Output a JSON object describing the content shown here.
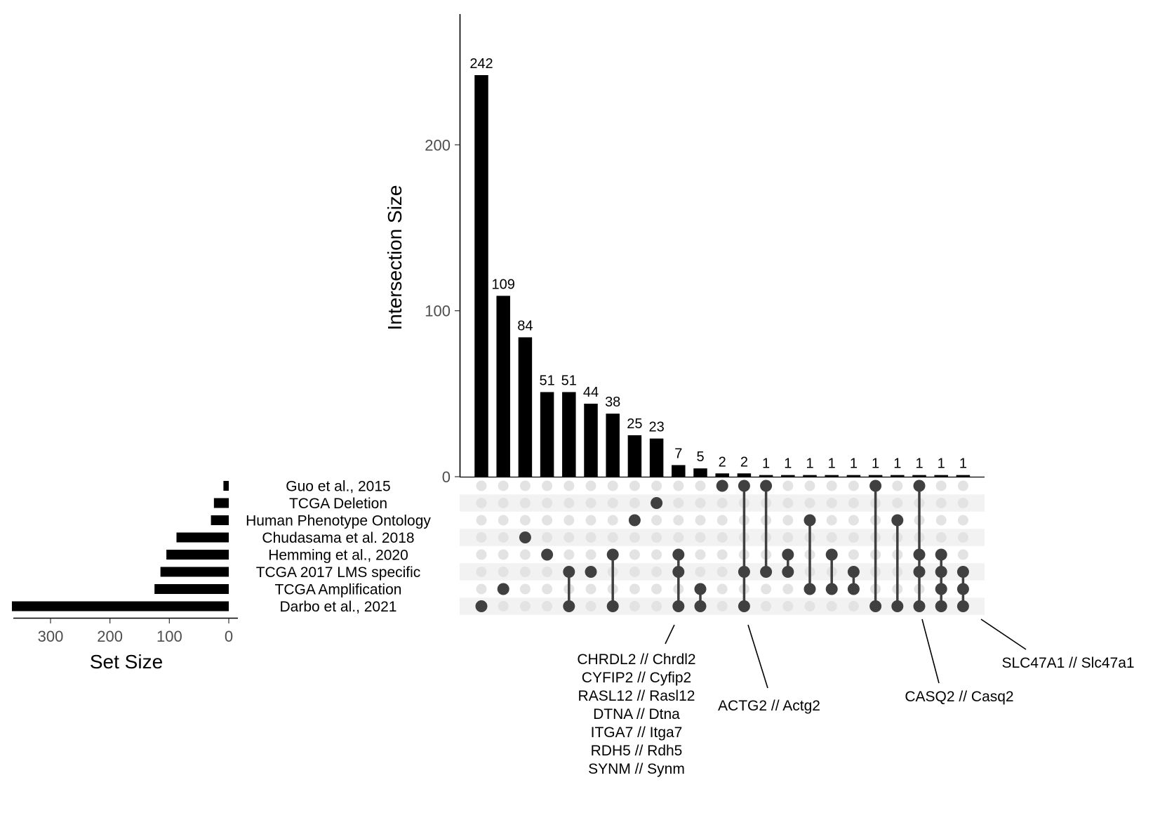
{
  "chart_data": {
    "type": "upset",
    "intersection_axis": {
      "label": "Intersection Size",
      "ylim": [
        0,
        260
      ],
      "ticks": [
        0,
        100,
        200
      ]
    },
    "set_size_axis": {
      "label": "Set Size",
      "xlim": [
        380,
        0
      ],
      "ticks": [
        300,
        200,
        100,
        0
      ]
    },
    "sets": [
      {
        "name": "Guo et al., 2015",
        "size": 9
      },
      {
        "name": "TCGA Deletion",
        "size": 25
      },
      {
        "name": "Human Phenotype Ontology",
        "size": 30
      },
      {
        "name": "Chudasama et al. 2018",
        "size": 88
      },
      {
        "name": "Hemming et al., 2020",
        "size": 105
      },
      {
        "name": "TCGA 2017 LMS specific",
        "size": 115
      },
      {
        "name": "TCGA Amplification",
        "size": 125
      },
      {
        "name": "Darbo et al., 2021",
        "size": 365
      }
    ],
    "intersections": [
      {
        "value": 242,
        "label": "242",
        "members": [
          7
        ]
      },
      {
        "value": 109,
        "label": "109",
        "members": [
          6
        ]
      },
      {
        "value": 84,
        "label": "84",
        "members": [
          3
        ]
      },
      {
        "value": 51,
        "label": "51",
        "members": [
          4
        ]
      },
      {
        "value": 51,
        "label": "51",
        "members": [
          5,
          7
        ]
      },
      {
        "value": 44,
        "label": "44",
        "members": [
          5
        ]
      },
      {
        "value": 38,
        "label": "38",
        "members": [
          4,
          7
        ]
      },
      {
        "value": 25,
        "label": "25",
        "members": [
          2
        ]
      },
      {
        "value": 23,
        "label": "23",
        "members": [
          1
        ]
      },
      {
        "value": 7,
        "label": "7",
        "members": [
          4,
          5,
          7
        ]
      },
      {
        "value": 5,
        "label": "5",
        "members": [
          6,
          7
        ]
      },
      {
        "value": 2,
        "label": "2",
        "members": [
          0
        ]
      },
      {
        "value": 2,
        "label": "2",
        "members": [
          0,
          5,
          7
        ]
      },
      {
        "value": 1,
        "label": "1",
        "members": [
          0,
          5
        ]
      },
      {
        "value": 1,
        "label": "1",
        "members": [
          4,
          5
        ]
      },
      {
        "value": 1,
        "label": "1",
        "members": [
          2,
          6
        ]
      },
      {
        "value": 1,
        "label": "1",
        "members": [
          4,
          6
        ]
      },
      {
        "value": 1,
        "label": "1",
        "members": [
          5,
          6
        ]
      },
      {
        "value": 1,
        "label": "1",
        "members": [
          0,
          7
        ]
      },
      {
        "value": 1,
        "label": "1",
        "members": [
          2,
          7
        ]
      },
      {
        "value": 1,
        "label": "1",
        "members": [
          0,
          4,
          5,
          7
        ]
      },
      {
        "value": 1,
        "label": "1",
        "members": [
          4,
          5,
          6,
          7
        ]
      },
      {
        "value": 1,
        "label": "1",
        "members": [
          5,
          6,
          7
        ]
      }
    ],
    "annotations": [
      {
        "column": 9,
        "genes": [
          "CHRDL2 // Chrdl2",
          "CYFIP2 // Cyfip2",
          "RASL12 // Rasl12",
          "DTNA // Dtna",
          "ITGA7 // Itga7",
          "RDH5 // Rdh5",
          "SYNM // Synm"
        ]
      },
      {
        "column": 12,
        "genes": [
          "ACTG2 // Actg2"
        ]
      },
      {
        "column": 20,
        "genes": [
          "CASQ2 // Casq2"
        ]
      },
      {
        "column": 22,
        "genes": [
          "SLC47A1 // Slc47a1"
        ]
      }
    ],
    "colors": {
      "bar": "#000000",
      "dot_active": "#404040",
      "dot_inactive": "#e3e3e3",
      "stripe": "#f2f2f2",
      "tick_text": "#4d4d4d"
    }
  }
}
